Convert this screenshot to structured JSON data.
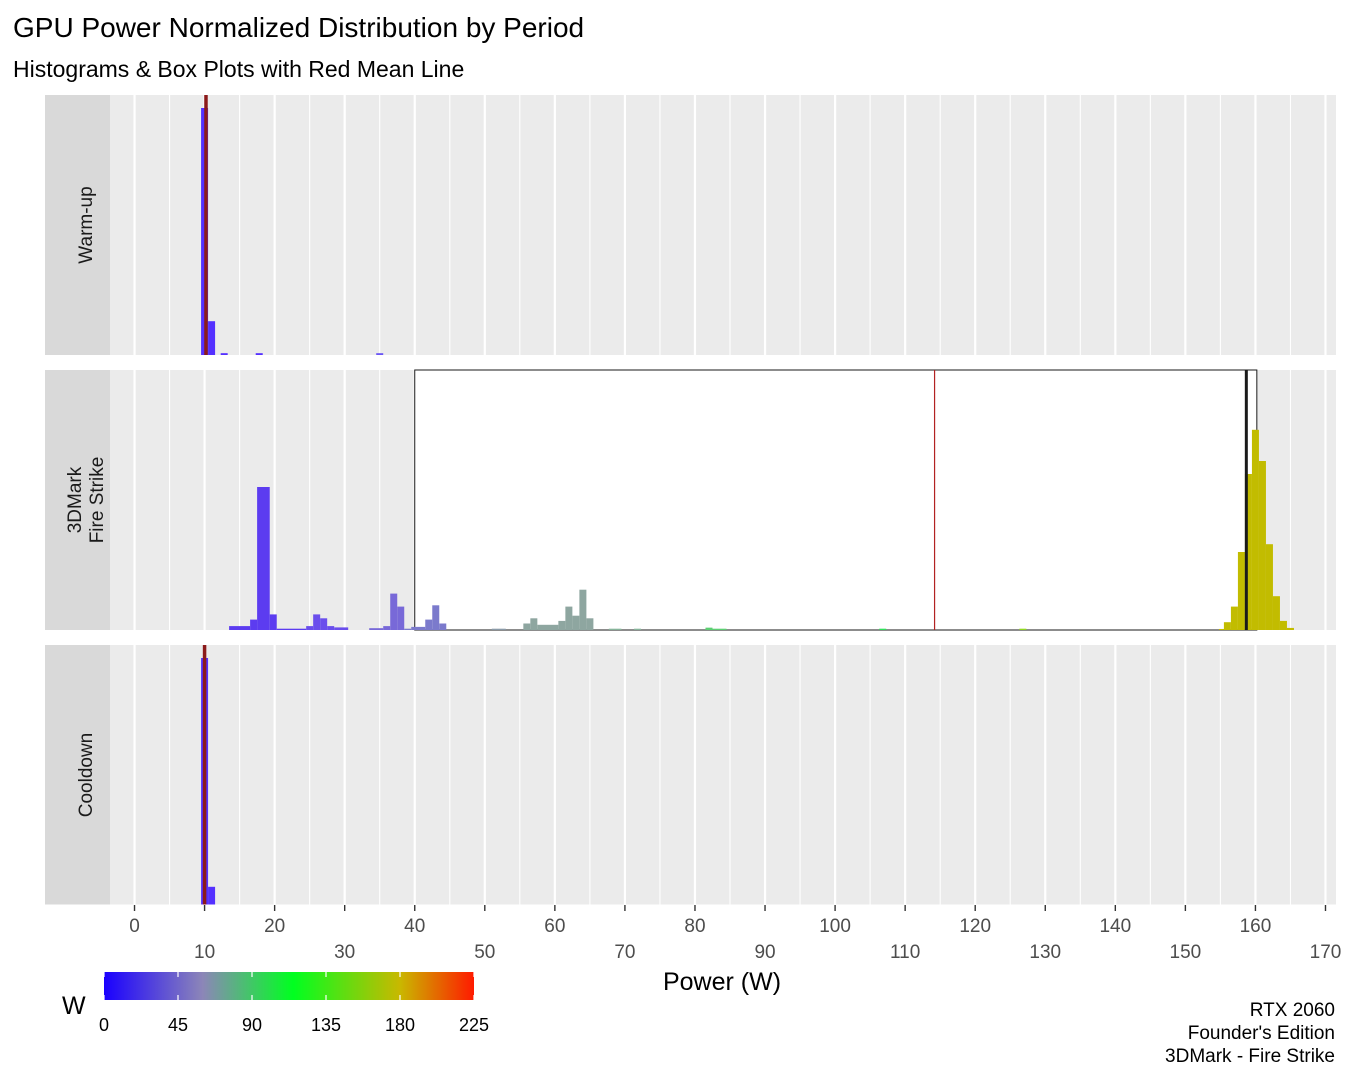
{
  "chart_data": {
    "type": "histogram",
    "title": "GPU Power Normalized Distribution by Period",
    "subtitle": "Histograms & Box Plots with Red Mean Line",
    "xlabel": "Power (W)",
    "xlim": [
      -3.5,
      171.5
    ],
    "x_ticks_row1": [
      0,
      20,
      40,
      60,
      80,
      100,
      120,
      140,
      160
    ],
    "x_ticks_row2": [
      10,
      30,
      50,
      70,
      90,
      110,
      130,
      150,
      170
    ],
    "panels": [
      {
        "strip": [
          "Warm-up"
        ],
        "mean": 10.2,
        "bins": [
          {
            "x0": 9.5,
            "x1": 10.5,
            "h": 0.95,
            "color": "#5430ff"
          },
          {
            "x0": 10.5,
            "x1": 11.5,
            "h": 0.13,
            "color": "#5430ff"
          },
          {
            "x0": 12.3,
            "x1": 13.3,
            "h": 0.007,
            "color": "#5430ff"
          },
          {
            "x0": 17.3,
            "x1": 18.3,
            "h": 0.007,
            "color": "#5430ff"
          },
          {
            "x0": 34.5,
            "x1": 35.5,
            "h": 0.007,
            "color": "#6a55f5"
          }
        ]
      },
      {
        "strip": [
          "3DMark",
          "Fire Strike"
        ],
        "mean": 114.2,
        "box": {
          "q1": 40,
          "median": 158.7,
          "q3": 160.2
        },
        "bins": [
          {
            "x0": 13.5,
            "x1": 16.5,
            "h": 0.015,
            "color": "#5c3cf0"
          },
          {
            "x0": 16.5,
            "x1": 17.5,
            "h": 0.04,
            "color": "#5c3cf0"
          },
          {
            "x0": 17.5,
            "x1": 19.3,
            "h": 0.55,
            "color": "#5c3cf0"
          },
          {
            "x0": 19.3,
            "x1": 20.3,
            "h": 0.06,
            "color": "#5c3cf0"
          },
          {
            "x0": 20.3,
            "x1": 24.5,
            "h": 0.005,
            "color": "#5c3cf0"
          },
          {
            "x0": 24.5,
            "x1": 25.5,
            "h": 0.015,
            "color": "#6a4eec"
          },
          {
            "x0": 25.5,
            "x1": 26.5,
            "h": 0.06,
            "color": "#6a4eec"
          },
          {
            "x0": 26.5,
            "x1": 27.5,
            "h": 0.045,
            "color": "#6a4eec"
          },
          {
            "x0": 27.5,
            "x1": 28.5,
            "h": 0.015,
            "color": "#6a4eec"
          },
          {
            "x0": 28.5,
            "x1": 30.5,
            "h": 0.01,
            "color": "#6a4eec"
          },
          {
            "x0": 33.5,
            "x1": 35.5,
            "h": 0.007,
            "color": "#7869d8"
          },
          {
            "x0": 35.5,
            "x1": 36.5,
            "h": 0.015,
            "color": "#7869d8"
          },
          {
            "x0": 36.5,
            "x1": 37.5,
            "h": 0.14,
            "color": "#7869d8"
          },
          {
            "x0": 37.5,
            "x1": 38.5,
            "h": 0.09,
            "color": "#7869d8"
          },
          {
            "x0": 38.5,
            "x1": 39.5,
            "h": 0.005,
            "color": "#7b7acc"
          },
          {
            "x0": 39.5,
            "x1": 41.5,
            "h": 0.012,
            "color": "#7b7acc"
          },
          {
            "x0": 41.5,
            "x1": 42.5,
            "h": 0.04,
            "color": "#7b7acc"
          },
          {
            "x0": 42.5,
            "x1": 43.5,
            "h": 0.095,
            "color": "#7b7acc"
          },
          {
            "x0": 43.5,
            "x1": 44.5,
            "h": 0.025,
            "color": "#7b7acc"
          },
          {
            "x0": 51,
            "x1": 53,
            "h": 0.005,
            "color": "#8a9aa8"
          },
          {
            "x0": 55.5,
            "x1": 56.5,
            "h": 0.025,
            "color": "#8ea6a0"
          },
          {
            "x0": 56.5,
            "x1": 57.5,
            "h": 0.045,
            "color": "#8ea6a0"
          },
          {
            "x0": 57.5,
            "x1": 60.5,
            "h": 0.02,
            "color": "#8ea6a0"
          },
          {
            "x0": 60.5,
            "x1": 61.5,
            "h": 0.035,
            "color": "#8ea6a0"
          },
          {
            "x0": 61.5,
            "x1": 62.5,
            "h": 0.09,
            "color": "#8ea6a0"
          },
          {
            "x0": 62.5,
            "x1": 63.5,
            "h": 0.055,
            "color": "#8ea6a0"
          },
          {
            "x0": 63.5,
            "x1": 64.5,
            "h": 0.155,
            "color": "#8ea6a0"
          },
          {
            "x0": 64.5,
            "x1": 65.5,
            "h": 0.045,
            "color": "#8ea6a0"
          },
          {
            "x0": 67.7,
            "x1": 69.5,
            "h": 0.005,
            "color": "#86b49a"
          },
          {
            "x0": 71.3,
            "x1": 72.3,
            "h": 0.005,
            "color": "#86b49a"
          },
          {
            "x0": 81.5,
            "x1": 82.5,
            "h": 0.009,
            "color": "#5ccf72"
          },
          {
            "x0": 82.5,
            "x1": 84.5,
            "h": 0.005,
            "color": "#5ccf72"
          },
          {
            "x0": 106.3,
            "x1": 107.3,
            "h": 0.005,
            "color": "#30e05a"
          },
          {
            "x0": 126.3,
            "x1": 127.3,
            "h": 0.005,
            "color": "#90d820"
          },
          {
            "x0": 154.8,
            "x1": 155.5,
            "h": 0.004,
            "color": "#c2bc00"
          },
          {
            "x0": 155.5,
            "x1": 156.5,
            "h": 0.03,
            "color": "#c2bc00"
          },
          {
            "x0": 156.5,
            "x1": 157.5,
            "h": 0.09,
            "color": "#c2bc00"
          },
          {
            "x0": 157.5,
            "x1": 158.5,
            "h": 0.3,
            "color": "#c2bc00"
          },
          {
            "x0": 158.5,
            "x1": 159.5,
            "h": 0.6,
            "color": "#c2bc00"
          },
          {
            "x0": 159.5,
            "x1": 160.5,
            "h": 0.77,
            "color": "#c2bc00"
          },
          {
            "x0": 160.5,
            "x1": 161.5,
            "h": 0.65,
            "color": "#c2bc00"
          },
          {
            "x0": 161.5,
            "x1": 162.5,
            "h": 0.33,
            "color": "#c2bc00"
          },
          {
            "x0": 162.5,
            "x1": 163.5,
            "h": 0.13,
            "color": "#c2bc00"
          },
          {
            "x0": 163.5,
            "x1": 164.5,
            "h": 0.035,
            "color": "#c2bc00"
          },
          {
            "x0": 164.5,
            "x1": 165.5,
            "h": 0.008,
            "color": "#c2bc00"
          }
        ]
      },
      {
        "strip": [
          "Cooldown"
        ],
        "mean": 10.0,
        "bins": [
          {
            "x0": 9.5,
            "x1": 10.5,
            "h": 0.95,
            "color": "#5430ff"
          },
          {
            "x0": 10.5,
            "x1": 11.5,
            "h": 0.07,
            "color": "#5430ff"
          }
        ]
      }
    ],
    "legend": {
      "title": "W",
      "min": 0,
      "max": 225,
      "ticks": [
        0,
        45,
        90,
        135,
        180,
        225
      ],
      "stops": [
        {
          "v": 0,
          "color": "#1a00ff"
        },
        {
          "v": 60,
          "color": "#8c86b8"
        },
        {
          "v": 115,
          "color": "#00ff20"
        },
        {
          "v": 180,
          "color": "#c9b800"
        },
        {
          "v": 225,
          "color": "#ff1a00"
        }
      ]
    },
    "caption": [
      "RTX 2060",
      "Founder's Edition",
      "3DMark - Fire Strike"
    ]
  }
}
